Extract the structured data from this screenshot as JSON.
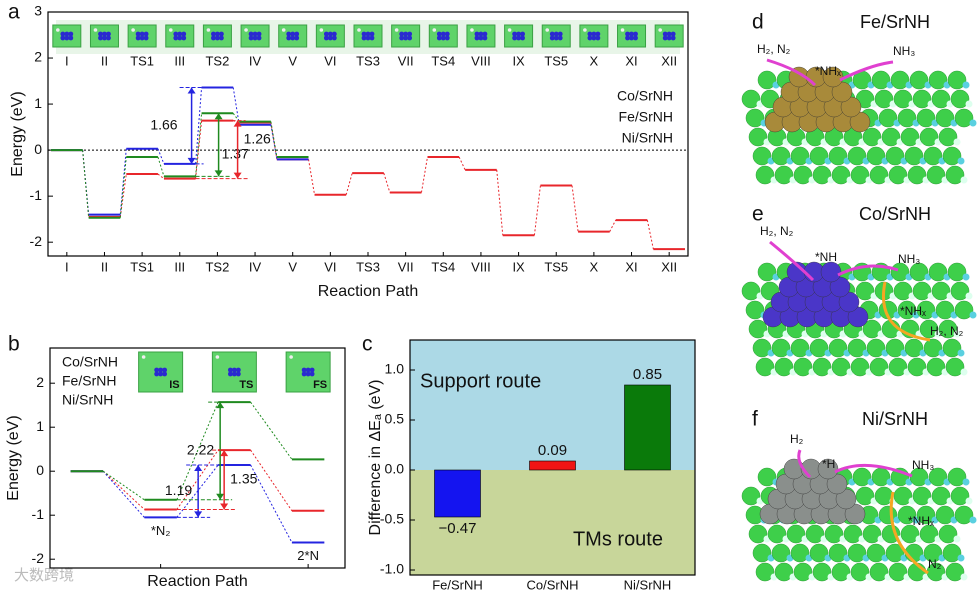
{
  "chart_data": [
    {
      "type": "profile",
      "letter": "a",
      "xlabel": "Reaction Path",
      "ylabel": "Energy (eV)",
      "categories": [
        "I",
        "II",
        "TS1",
        "III",
        "TS2",
        "IV",
        "V",
        "VI",
        "TS3",
        "VII",
        "TS4",
        "VIII",
        "IX",
        "TS5",
        "X",
        "XI",
        "XII"
      ],
      "ylim": [
        -2.3,
        3
      ],
      "yticks": [
        -2,
        -1,
        0,
        1,
        2,
        3
      ],
      "zero_line": true,
      "highlight": {
        "index": 4,
        "color": "#e8262b"
      },
      "series": [
        {
          "name": "Co/SrNH",
          "color": "#e8262b",
          "values": [
            0,
            -1.45,
            -0.52,
            -0.62,
            0.64,
            0.6,
            -0.2,
            -0.97,
            -0.5,
            -0.92,
            -0.15,
            -0.43,
            -1.85,
            -0.77,
            -1.77,
            -1.52,
            -2.15
          ]
        },
        {
          "name": "Fe/SrNH",
          "color": "#2424e0",
          "values": [
            0,
            -1.4,
            0.03,
            -0.3,
            1.36,
            0.55,
            -0.2,
            null,
            null,
            null,
            null,
            null,
            null,
            null,
            null,
            null,
            null
          ]
        },
        {
          "name": "Ni/SrNH",
          "color": "#1f8a1f",
          "values": [
            0,
            -1.47,
            -0.15,
            -0.57,
            0.8,
            0.62,
            -0.15,
            null,
            null,
            null,
            null,
            null,
            null,
            null,
            null,
            null,
            null
          ]
        }
      ],
      "annotations": [
        {
          "text": "1.66",
          "series": 1,
          "from": 3,
          "to": 4
        },
        {
          "text": "1.37",
          "series": 2,
          "from": 3,
          "to": 4
        },
        {
          "text": "1.26",
          "series": 0,
          "from": 3,
          "to": 4
        }
      ]
    },
    {
      "type": "profile",
      "letter": "b",
      "xlabel": "Reaction Path",
      "ylabel": "Energy (eV)",
      "categories": [
        null,
        "*N₂",
        null,
        "2*N"
      ],
      "insets": [
        "IS",
        "TS",
        "FS"
      ],
      "ylim": [
        -2.2,
        2.8
      ],
      "yticks": [
        -2,
        -1,
        0,
        1,
        2
      ],
      "series": [
        {
          "name": "Co/SrNH",
          "color": "#e8262b",
          "values": [
            0,
            -0.87,
            0.48,
            -0.9
          ]
        },
        {
          "name": "Fe/SrNH",
          "color": "#2424e0",
          "values": [
            0,
            -1.05,
            0.14,
            -1.62
          ]
        },
        {
          "name": "Ni/SrNH",
          "color": "#1f8a1f",
          "values": [
            0,
            -0.65,
            1.57,
            0.27
          ]
        }
      ],
      "annotations": [
        {
          "text": "2.22",
          "series": 2,
          "from": 1,
          "to": 2
        },
        {
          "text": "1.19",
          "series": 1,
          "from": 1,
          "to": 2
        },
        {
          "text": "1.35",
          "series": 0,
          "from": 1,
          "to": 2
        }
      ]
    },
    {
      "type": "bar",
      "letter": "c",
      "ylabel": "Difference in ΔEₐ (eV)",
      "categories": [
        "Fe/SrNH",
        "Co/SrNH",
        "Ni/SrNH"
      ],
      "values": [
        -0.47,
        0.09,
        0.85
      ],
      "value_labels": [
        "−0.47",
        "0.09",
        "0.85"
      ],
      "colors": [
        "#1414f0",
        "#f01414",
        "#0a7a0a"
      ],
      "ylim": [
        -1.05,
        1.3
      ],
      "yticks": [
        {
          "value": 1,
          "label": "1.0"
        },
        0.5,
        {
          "value": 0,
          "label": "0.0"
        },
        -0.5,
        {
          "value": -1,
          "label": "-1.0"
        }
      ],
      "regions": [
        {
          "text": "Support route",
          "color": "#acd9e6"
        },
        {
          "text": "TMs route",
          "color": "#c8d69a"
        }
      ]
    }
  ],
  "illustrations": [
    {
      "letter": "d",
      "title": "Fe/SrNH",
      "cluster_color": "#a88a3a",
      "labels": [
        "H₂, N₂",
        "*NHₓ",
        "NH₃"
      ]
    },
    {
      "letter": "e",
      "title": "Co/SrNH",
      "cluster_color": "#4a36c8",
      "labels": [
        "H₂, N₂",
        "*NH",
        "NH₃",
        "*NHₓ",
        "H₂, N₂"
      ]
    },
    {
      "letter": "f",
      "title": "Ni/SrNH",
      "cluster_color": "#8a8f8c",
      "labels": [
        "H₂",
        "*H",
        "NH₃",
        "*NHₓ",
        "N₂"
      ]
    }
  ],
  "watermark": "大数跨境"
}
